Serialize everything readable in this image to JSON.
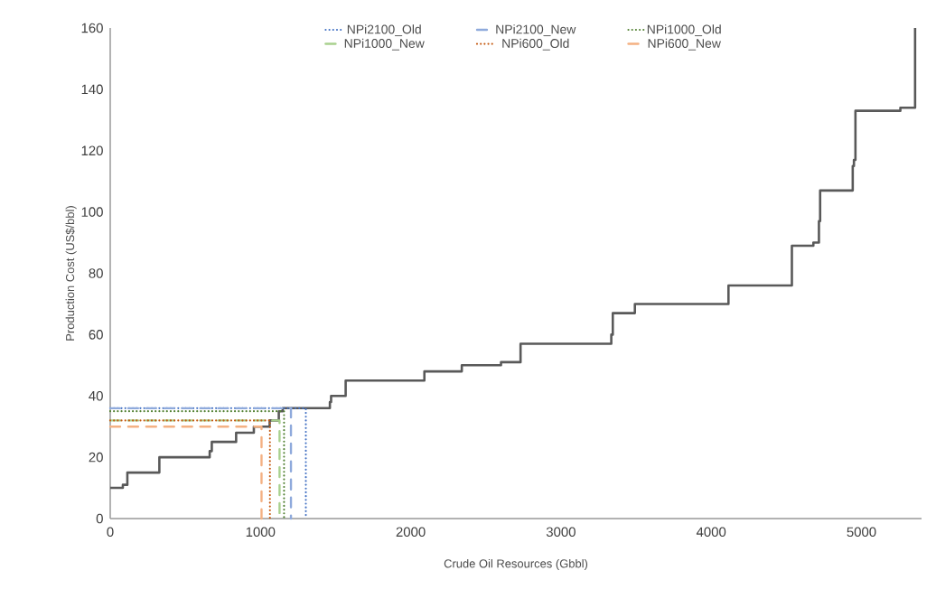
{
  "chart_data": {
    "type": "line",
    "xlabel": "Crude Oil Resources (Gbbl)",
    "ylabel": "Production Cost (US$/bbl)",
    "xlim": [
      0,
      5400
    ],
    "xticks": [
      0,
      1000,
      2000,
      3000,
      4000,
      5000
    ],
    "ylim": [
      0,
      160
    ],
    "yticks": [
      0,
      20,
      40,
      60,
      80,
      100,
      120,
      140,
      160
    ],
    "grid": false,
    "legend": "top",
    "series": [
      {
        "type": "step",
        "color": "#595959",
        "line_style": "solid",
        "x": [
          0,
          84,
          114,
          327,
          662,
          676,
          838,
          956,
          1061,
          1122,
          1148,
          1462,
          1470,
          1567,
          2091,
          2340,
          2601,
          2731,
          3335,
          3345,
          3492,
          4115,
          4537,
          4680,
          4717,
          4725,
          4942,
          4950,
          4960,
          5259,
          5357
        ],
        "values": [
          10,
          11,
          15,
          20,
          22,
          25,
          28,
          30,
          32,
          35,
          36,
          38,
          40,
          45,
          48,
          50,
          51,
          57,
          60,
          67,
          70,
          76,
          89,
          90,
          97,
          107,
          115,
          117,
          133,
          134,
          160
        ]
      },
      {
        "name": "NPi2100_Old",
        "color": "#4472c4",
        "line_style": "dotted",
        "x": [
          0,
          1302,
          1302
        ],
        "values": [
          36,
          36,
          0
        ]
      },
      {
        "name": "NPi2100_New",
        "color": "#8faadc",
        "line_style": "dashed",
        "x": [
          0,
          1203,
          1203
        ],
        "values": [
          36,
          36,
          0
        ]
      },
      {
        "name": "NPi1000_Old",
        "color": "#548235",
        "line_style": "dotted",
        "x": [
          0,
          1157,
          1157
        ],
        "values": [
          35,
          35,
          0
        ]
      },
      {
        "name": "NPi1000_New",
        "color": "#a9d18e",
        "line_style": "dashed",
        "x": [
          0,
          1127,
          1127
        ],
        "values": [
          32,
          32,
          0
        ]
      },
      {
        "name": "NPi600_Old",
        "color": "#c55a11",
        "line_style": "dotted",
        "x": [
          0,
          1063,
          1063
        ],
        "values": [
          32,
          32,
          0
        ]
      },
      {
        "name": "NPi600_New",
        "color": "#f4b183",
        "line_style": "dashed",
        "x": [
          0,
          1007,
          1007
        ],
        "values": [
          30,
          30,
          0
        ]
      }
    ]
  }
}
